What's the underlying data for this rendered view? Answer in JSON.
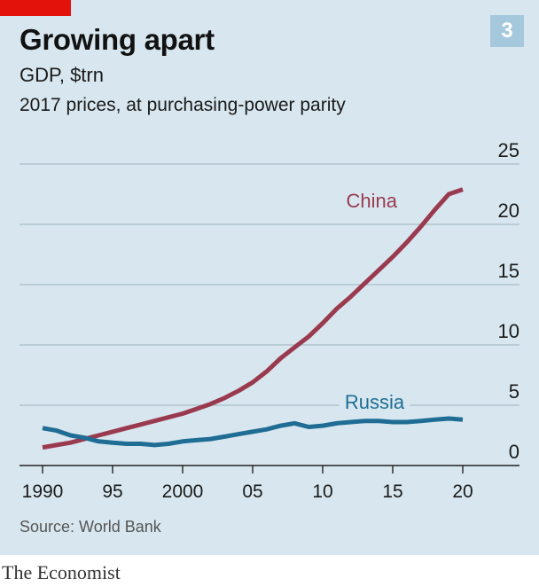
{
  "header": {
    "title": "Growing apart",
    "badge": "3",
    "subtitle": "GDP, $trn",
    "subsubtitle": "2017 prices, at purchasing-power parity"
  },
  "footer": {
    "source": "Source: World Bank",
    "brand": "The Economist"
  },
  "colors": {
    "background": "#d8e7ef",
    "brand_red": "#e3120b",
    "china": "#9a3a4f",
    "russia": "#1f6c94",
    "grid": "#a8bcc8"
  },
  "chart_data": {
    "type": "line",
    "x_tick_labels": [
      "1990",
      "95",
      "2000",
      "05",
      "10",
      "15",
      "20"
    ],
    "y_tick_labels": [
      "0",
      "5",
      "10",
      "15",
      "20",
      "25"
    ],
    "x_ticks": [
      1990,
      1995,
      2000,
      2005,
      2010,
      2015,
      2020
    ],
    "y_ticks": [
      0,
      5,
      10,
      15,
      20,
      25
    ],
    "xlim": [
      1990,
      2020
    ],
    "ylim": [
      0,
      25
    ],
    "grid": true,
    "y_axis_side": "right",
    "x": [
      1990,
      1991,
      1992,
      1993,
      1994,
      1995,
      1996,
      1997,
      1998,
      1999,
      2000,
      2001,
      2002,
      2003,
      2004,
      2005,
      2006,
      2007,
      2008,
      2009,
      2010,
      2011,
      2012,
      2013,
      2014,
      2015,
      2016,
      2017,
      2018,
      2019,
      2020
    ],
    "series": [
      {
        "name": "China",
        "color": "#9a3a4f",
        "values": [
          1.5,
          1.7,
          1.9,
          2.2,
          2.5,
          2.8,
          3.1,
          3.4,
          3.7,
          4.0,
          4.3,
          4.7,
          5.1,
          5.6,
          6.2,
          6.9,
          7.8,
          8.9,
          9.8,
          10.7,
          11.8,
          13.0,
          14.0,
          15.1,
          16.2,
          17.3,
          18.5,
          19.8,
          21.2,
          22.5,
          22.9
        ]
      },
      {
        "name": "Russia",
        "color": "#1f6c94",
        "values": [
          3.1,
          2.9,
          2.5,
          2.3,
          2.0,
          1.9,
          1.8,
          1.8,
          1.7,
          1.8,
          2.0,
          2.1,
          2.2,
          2.4,
          2.6,
          2.8,
          3.0,
          3.3,
          3.5,
          3.2,
          3.3,
          3.5,
          3.6,
          3.7,
          3.7,
          3.6,
          3.6,
          3.7,
          3.8,
          3.9,
          3.8
        ]
      }
    ]
  }
}
